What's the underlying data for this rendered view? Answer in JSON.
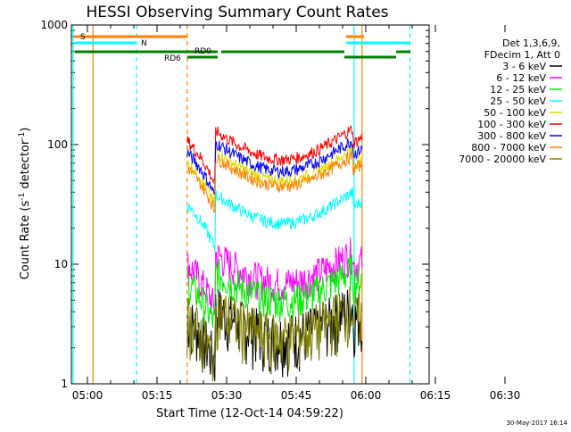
{
  "chart_data": {
    "type": "line",
    "title": "HESSI Observing Summary Count Rates",
    "xlabel": "Start Time (12-Oct-14 04:59:22)",
    "ylabel_main": "Count Rate (s",
    "ylabel_sup1": "-1",
    "ylabel_mid": " detector",
    "ylabel_sup2": "-1",
    "ylabel_end": ")",
    "yscale": "log",
    "ylim": [
      1,
      1000
    ],
    "xlim_minutes": [
      -4,
      72
    ],
    "x_ticks": [
      {
        "m": 0,
        "label": "05:00"
      },
      {
        "m": 15,
        "label": "05:15"
      },
      {
        "m": 30,
        "label": "05:30"
      },
      {
        "m": 45,
        "label": "05:45"
      },
      {
        "m": 60,
        "label": "06:00"
      },
      {
        "m": 75,
        "label": "06:15"
      },
      {
        "m": 90,
        "label": "06:30"
      }
    ],
    "y_ticks": [
      {
        "v": 1,
        "label": "1"
      },
      {
        "v": 10,
        "label": "10"
      },
      {
        "v": 100,
        "label": "100"
      },
      {
        "v": 1000,
        "label": "1000"
      }
    ],
    "legend_header": [
      "Det 1,3,6,9,",
      "FDecim 1, Att 0"
    ],
    "series": [
      {
        "name": "3 - 6 keV",
        "color": "#000000",
        "level": 2.5
      },
      {
        "name": "6 - 12 keV",
        "color": "#ff00ff",
        "level": 7
      },
      {
        "name": "12 - 25 keV",
        "color": "#00ee00",
        "level": 5
      },
      {
        "name": "25 - 50 keV",
        "color": "#00ffff",
        "level": 22
      },
      {
        "name": "50 - 100 keV",
        "color": "#dddd00",
        "level": 50
      },
      {
        "name": "100 - 300 keV",
        "color": "#ff0000",
        "level": 75
      },
      {
        "name": "300 - 800 keV",
        "color": "#0000ff",
        "level": 60
      },
      {
        "name": "800 - 7000 keV",
        "color": "#ff8000",
        "level": 45
      },
      {
        "name": "7000 - 20000 keV",
        "color": "#808000",
        "level": 2.5
      }
    ],
    "flags": [
      {
        "label": "S",
        "color": "#ff8000"
      },
      {
        "label": "N",
        "color": "#00ffff"
      },
      {
        "label": "RD0",
        "color": "#007f00"
      },
      {
        "label": "RD6",
        "color": "#007f00"
      }
    ],
    "timestamp": "30-May-2017 16:14"
  }
}
